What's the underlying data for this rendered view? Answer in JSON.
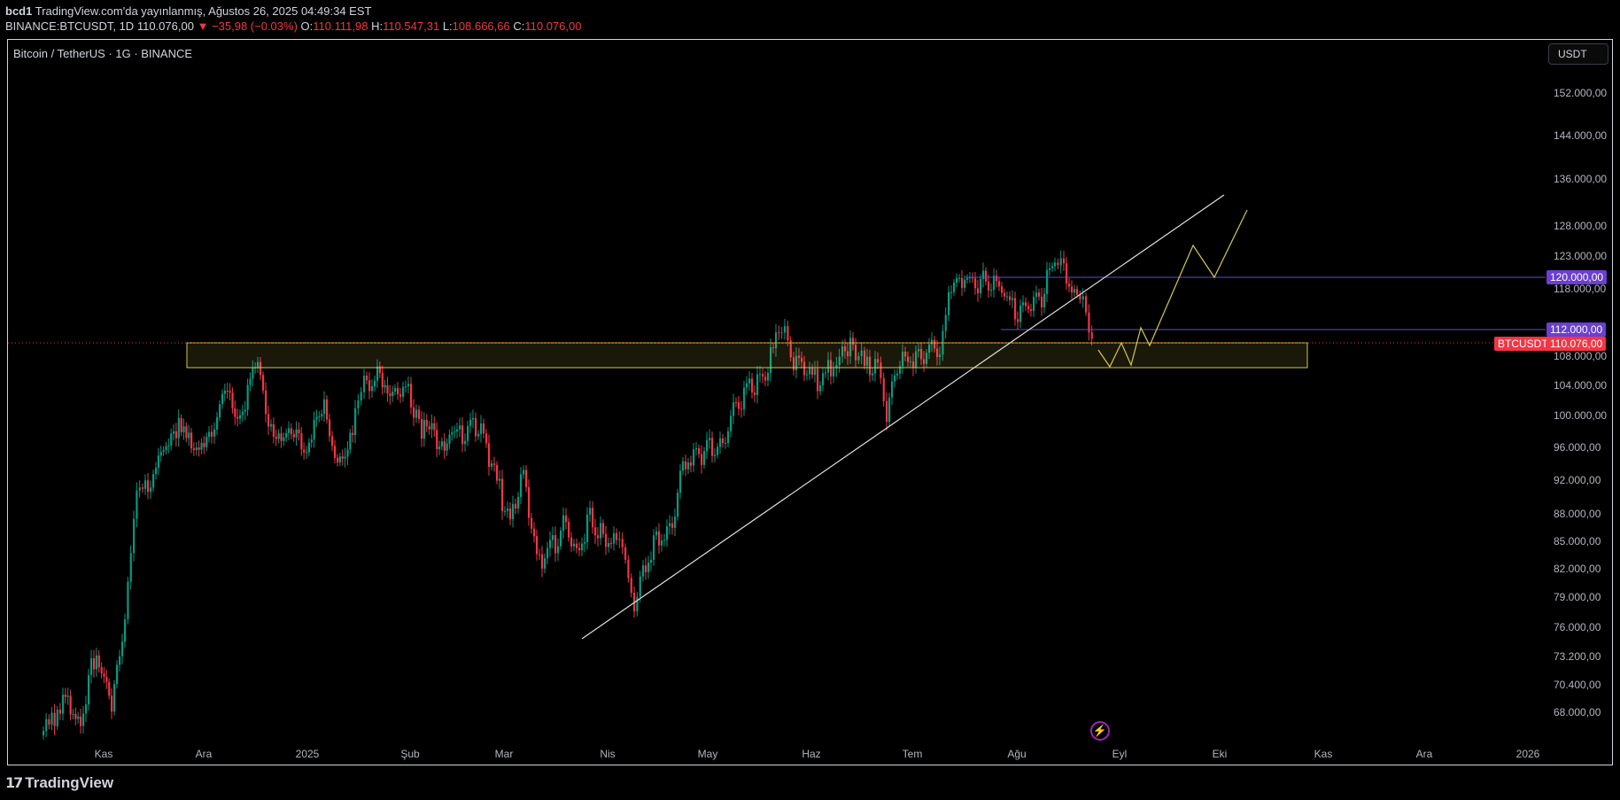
{
  "header": {
    "user": "bcd1",
    "published": "TradingView.com'da yayınlanmış, Ağustos 26, 2025 04:49:34 EST",
    "symbol": "BINANCE:BTCUSDT, 1D",
    "last": "110.076,00",
    "change": "−35,98 (−0.03%)",
    "o_label": "O:",
    "o": "110.111,98",
    "h_label": "H:",
    "h": "110.547,31",
    "l_label": "L:",
    "l": "108.666,66",
    "c_label": "C:",
    "c": "110.076,00"
  },
  "chart": {
    "title": "Bitcoin / TetherUS · 1G · BINANCE",
    "currency": "USDT",
    "price_axis": [
      "152.000,00",
      "144.000,00",
      "136.000,00",
      "128.000,00",
      "123.000,00",
      "118.000,00",
      "108.000,00",
      "104.000,00",
      "100.000,00",
      "96.000,00",
      "92.000,00",
      "88.000,00",
      "85.000,00",
      "82.000,00",
      "79.000,00",
      "76.000,00",
      "73.200,00",
      "70.400,00",
      "68.000,00"
    ],
    "time_axis": [
      "Kas",
      "Ara",
      "2025",
      "Şub",
      "Mar",
      "Nis",
      "May",
      "Haz",
      "Tem",
      "Ağu",
      "Eyl",
      "Eki",
      "Kas",
      "Ara",
      "2026"
    ],
    "level_120": "120.000,00",
    "level_112": "112.000,00",
    "symbol_tag": "BTCUSDT",
    "price_tag": "110.076,00",
    "colors": {
      "up": "#089981",
      "down": "#f23645",
      "zone": "#d4c94a",
      "hline": "#5b4fc7",
      "tag_purple": "#6a3fd1",
      "tag_red": "#f23645"
    }
  },
  "footer": {
    "brand": "TradingView"
  },
  "icons": {
    "logo": "tradingview-logo-icon",
    "bolt": "lightning-icon"
  }
}
